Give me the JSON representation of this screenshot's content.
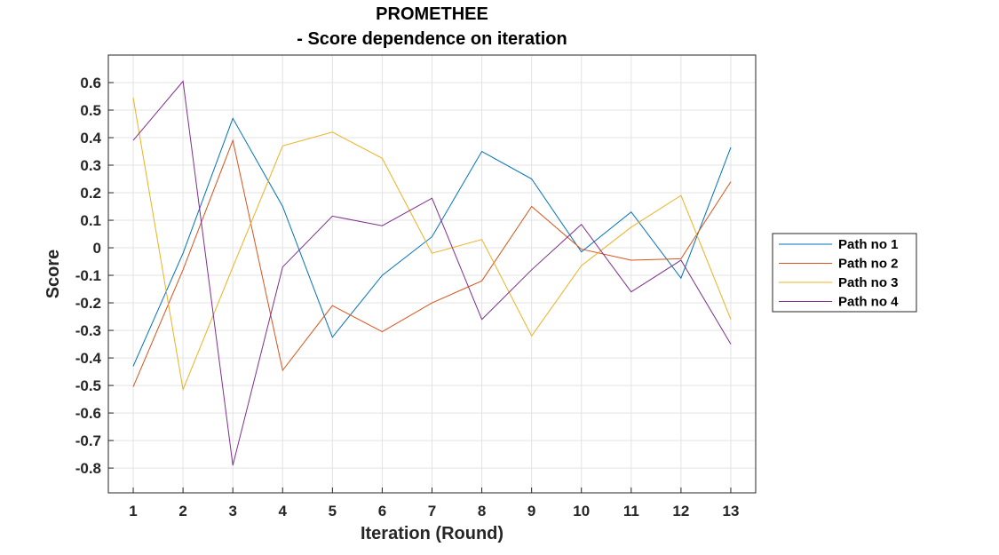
{
  "chart_data": {
    "type": "line",
    "title_line1": "PROMETHEE",
    "title_line2": "- Score dependence on iteration",
    "xlabel": "Iteration (Round)",
    "ylabel": "Score",
    "x": [
      1,
      2,
      3,
      4,
      5,
      6,
      7,
      8,
      9,
      10,
      11,
      12,
      13
    ],
    "xlim": [
      0.5,
      13.5
    ],
    "ylim": [
      -0.89,
      0.7
    ],
    "yticks": [
      -0.8,
      -0.7,
      -0.6,
      -0.5,
      -0.4,
      -0.3,
      -0.2,
      -0.1,
      0,
      0.1,
      0.2,
      0.3,
      0.4,
      0.5,
      0.6
    ],
    "ytick_labels": [
      "-0.8",
      "-0.7",
      "-0.6",
      "-0.5",
      "-0.4",
      "-0.3",
      "-0.2",
      "-0.1",
      "0",
      "0.1",
      "0.2",
      "0.3",
      "0.4",
      "0.5",
      "0.6"
    ],
    "grid": true,
    "legend_position": "outside-right",
    "series": [
      {
        "name": "Path no 1",
        "color": "#0072BD",
        "values": [
          -0.43,
          -0.02,
          0.47,
          0.15,
          -0.325,
          -0.1,
          0.04,
          0.35,
          0.25,
          -0.015,
          0.13,
          -0.11,
          0.365
        ]
      },
      {
        "name": "Path no 2",
        "color": "#D95319",
        "values": [
          -0.505,
          -0.08,
          0.39,
          -0.445,
          -0.21,
          -0.305,
          -0.2,
          -0.12,
          0.15,
          -0.005,
          -0.045,
          -0.04,
          0.24
        ]
      },
      {
        "name": "Path no 3",
        "color": "#EDB120",
        "values": [
          0.545,
          -0.515,
          -0.07,
          0.37,
          0.42,
          0.325,
          -0.02,
          0.03,
          -0.32,
          -0.065,
          0.075,
          0.19,
          -0.26
        ]
      },
      {
        "name": "Path no 4",
        "color": "#7E2F8E",
        "values": [
          0.39,
          0.605,
          -0.79,
          -0.07,
          0.115,
          0.08,
          0.18,
          -0.26,
          -0.08,
          0.085,
          -0.16,
          -0.045,
          -0.35
        ]
      }
    ]
  }
}
